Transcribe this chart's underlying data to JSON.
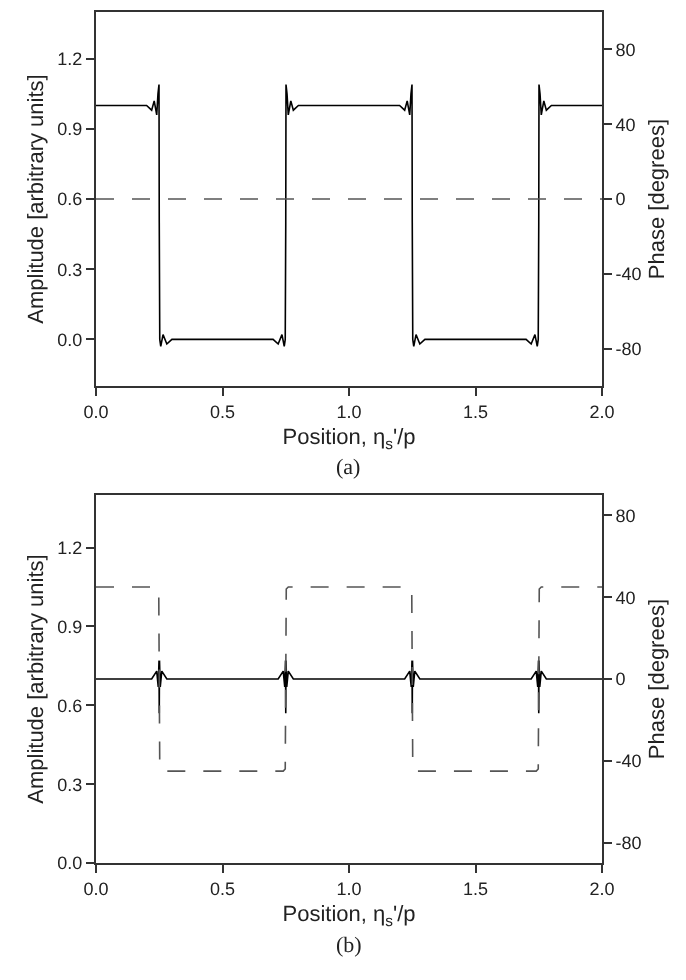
{
  "chart_data": [
    {
      "type": "line",
      "xlabel": "Position, η$_{s}$'/p",
      "ylabel": "Amplitude [arbitrary units]",
      "y2label": "Phase [degrees]",
      "annotations": [
        "(a)"
      ],
      "xlim": [
        0,
        2
      ],
      "xticks": [
        {
          "value": 0,
          "label": "0.0"
        },
        {
          "value": 0.5,
          "label": "0.5"
        },
        {
          "value": 1,
          "label": "1.0"
        },
        {
          "value": 1.5,
          "label": "1.5"
        },
        {
          "value": 2,
          "label": "2.0"
        }
      ],
      "ylim": [
        -0.2,
        1.4
      ],
      "yticks": [
        {
          "value": 0,
          "label": "0.0"
        },
        0.3,
        0.6,
        0.9,
        1.2
      ],
      "y2lim": [
        -100,
        100
      ],
      "y2ticks": [
        -80,
        -40,
        0,
        40,
        80
      ],
      "series": [
        {
          "color": "#000000",
          "line_style": "solid",
          "x": [
            0,
            0.2,
            0.22,
            0.23,
            0.24,
            0.245,
            0.249,
            0.25,
            0.252,
            0.256,
            0.265,
            0.28,
            0.3,
            0.7,
            0.72,
            0.735,
            0.744,
            0.748,
            0.75,
            0.751,
            0.755,
            0.76,
            0.77,
            0.78,
            0.8,
            1.2,
            1.22,
            1.23,
            1.24,
            1.245,
            1.249,
            1.25,
            1.252,
            1.256,
            1.265,
            1.28,
            1.3,
            1.7,
            1.72,
            1.735,
            1.744,
            1.748,
            1.75,
            1.751,
            1.755,
            1.76,
            1.77,
            1.78,
            1.8,
            2.0
          ],
          "values": [
            1.0,
            1.0,
            0.98,
            1.02,
            0.96,
            1.05,
            1.09,
            0.5,
            0.0,
            -0.03,
            0.02,
            -0.02,
            0.0,
            0.0,
            -0.02,
            0.02,
            -0.03,
            0.0,
            0.5,
            1.09,
            1.05,
            0.96,
            1.02,
            0.98,
            1.0,
            1.0,
            0.98,
            1.02,
            0.96,
            1.05,
            1.09,
            0.5,
            0.0,
            -0.03,
            0.02,
            -0.02,
            0.0,
            0.0,
            -0.02,
            0.02,
            -0.03,
            0.0,
            0.5,
            1.09,
            1.05,
            0.96,
            1.02,
            0.98,
            1.0,
            1.0
          ]
        },
        {
          "color": "#555555",
          "line_style": "dashed",
          "axis": "y2",
          "x": [
            0,
            2
          ],
          "values": [
            0,
            0
          ]
        }
      ]
    },
    {
      "type": "line",
      "xlabel": "Position, η$_{s}$'/p",
      "ylabel": "Amplitude [arbitrary units]",
      "y2label": "Phase [degrees]",
      "annotations": [
        "(b)"
      ],
      "xlim": [
        0,
        2
      ],
      "xticks": [
        {
          "value": 0,
          "label": "0.0"
        },
        {
          "value": 0.5,
          "label": "0.5"
        },
        {
          "value": 1,
          "label": "1.0"
        },
        {
          "value": 1.5,
          "label": "1.5"
        },
        {
          "value": 2,
          "label": "2.0"
        }
      ],
      "ylim": [
        0,
        1.4
      ],
      "yticks": [
        {
          "value": 0,
          "label": "0.0"
        },
        0.3,
        0.6,
        0.9,
        1.2
      ],
      "y2lim": [
        -90,
        90
      ],
      "y2ticks": [
        -80,
        -40,
        0,
        40,
        80
      ],
      "series": [
        {
          "color": "#555555",
          "line_style": "dashed",
          "axis": "y2",
          "x": [
            0,
            0.24,
            0.248,
            0.25,
            0.252,
            0.26,
            0.74,
            0.748,
            0.75,
            0.752,
            0.76,
            1.24,
            1.248,
            1.25,
            1.252,
            1.26,
            1.74,
            1.748,
            1.75,
            1.752,
            1.76,
            2.0
          ],
          "values": [
            45,
            45,
            44,
            0,
            -44,
            -45,
            -45,
            -44,
            0,
            44,
            45,
            45,
            44,
            0,
            -44,
            -45,
            -45,
            -44,
            0,
            44,
            45,
            45
          ]
        },
        {
          "color": "#000000",
          "line_style": "solid",
          "x": [
            0,
            0.22,
            0.24,
            0.246,
            0.249,
            0.25,
            0.251,
            0.254,
            0.26,
            0.28,
            0.72,
            0.74,
            0.746,
            0.749,
            0.75,
            0.751,
            0.754,
            0.76,
            0.78,
            1.22,
            1.24,
            1.246,
            1.249,
            1.25,
            1.251,
            1.254,
            1.26,
            1.28,
            1.72,
            1.74,
            1.746,
            1.749,
            1.75,
            1.751,
            1.754,
            1.76,
            1.78,
            2.0
          ],
          "values": [
            0.7,
            0.7,
            0.73,
            0.67,
            0.77,
            0.57,
            0.77,
            0.67,
            0.73,
            0.7,
            0.7,
            0.73,
            0.67,
            0.77,
            0.57,
            0.77,
            0.67,
            0.73,
            0.7,
            0.7,
            0.73,
            0.67,
            0.77,
            0.57,
            0.77,
            0.67,
            0.73,
            0.7,
            0.7,
            0.73,
            0.67,
            0.77,
            0.57,
            0.77,
            0.67,
            0.73,
            0.7,
            0.7
          ]
        }
      ]
    }
  ]
}
